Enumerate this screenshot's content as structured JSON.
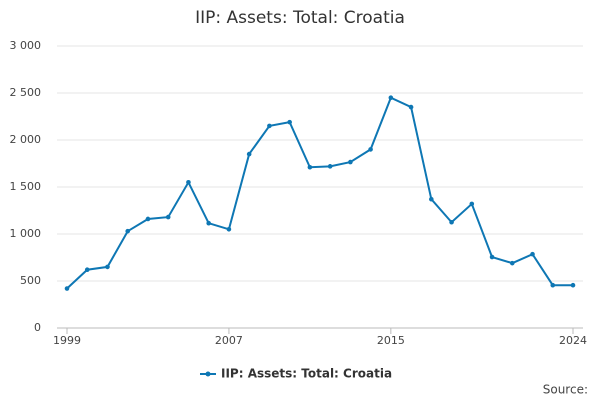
{
  "chart_data": {
    "type": "line",
    "title": "IIP: Assets: Total: Croatia",
    "x": [
      1999,
      2000,
      2001,
      2002,
      2003,
      2004,
      2005,
      2006,
      2007,
      2008,
      2009,
      2010,
      2011,
      2012,
      2013,
      2014,
      2015,
      2016,
      2017,
      2018,
      2019,
      2020,
      2021,
      2022,
      2023,
      2024
    ],
    "series": [
      {
        "name": "IIP: Assets: Total: Croatia",
        "color": "#0e77b4",
        "values": [
          420,
          620,
          650,
          1030,
          1160,
          1180,
          1550,
          1115,
          1050,
          1850,
          2150,
          2190,
          1710,
          1720,
          1765,
          1900,
          2450,
          2350,
          1370,
          1125,
          1320,
          755,
          690,
          785,
          455,
          455
        ]
      }
    ],
    "xlim": [
      1999,
      2024
    ],
    "xticks": [
      1999,
      2007,
      2015,
      2024
    ],
    "ylim": [
      0,
      3000
    ],
    "yticks": [
      0,
      500,
      {
        "value": 1000,
        "label": "1 000"
      },
      {
        "value": 1500,
        "label": "1 500"
      },
      {
        "value": 2000,
        "label": "2 000"
      },
      {
        "value": 2500,
        "label": "2 500"
      },
      {
        "value": 3000,
        "label": "3 000"
      }
    ],
    "grid": true,
    "source": "Source:"
  }
}
